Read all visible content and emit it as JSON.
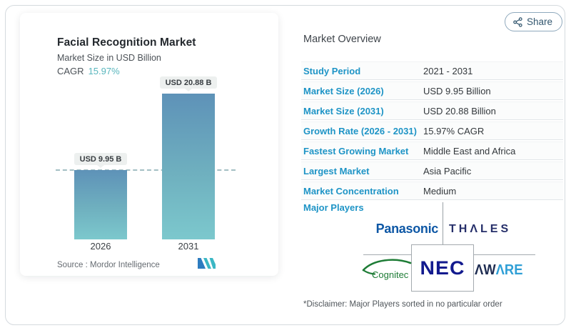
{
  "share": {
    "label": "Share"
  },
  "chart_card": {
    "title": "Facial Recognition Market",
    "subtitle": "Market Size in USD Billion",
    "cagr_label": "CAGR",
    "cagr_value": "15.97%",
    "source_label": "Source :  Mordor Intelligence"
  },
  "chart_data": {
    "type": "bar",
    "categories": [
      "2026",
      "2031"
    ],
    "values": [
      9.95,
      20.88
    ],
    "bar_labels": [
      "USD 9.95 B",
      "USD 20.88 B"
    ],
    "title": "Facial Recognition Market",
    "ylabel": "Market Size in USD Billion",
    "cagr": "15.97%",
    "ylim": [
      0,
      21
    ],
    "reference_line": 9.95,
    "grid": false,
    "bar_gradient_top": "#5e92b8",
    "bar_gradient_bottom": "#7cc8cd"
  },
  "overview": {
    "title": "Market Overview",
    "rows": [
      {
        "label": "Study Period",
        "value": "2021 - 2031"
      },
      {
        "label": "Market Size (2026)",
        "value": "USD 9.95 Billion"
      },
      {
        "label": "Market Size (2031)",
        "value": "USD 20.88 Billion"
      },
      {
        "label": "Growth Rate (2026 - 2031)",
        "value": "15.97% CAGR"
      },
      {
        "label": "Fastest Growing Market",
        "value": "Middle East and Africa"
      },
      {
        "label": "Largest Market",
        "value": "Asia Pacific"
      },
      {
        "label": "Market Concentration",
        "value": "Medium"
      }
    ],
    "major_players_label": "Major Players",
    "players": [
      "Panasonic",
      "THALES",
      "Cognitec",
      "NEC",
      "AWARE"
    ],
    "logos": {
      "panasonic": "Panasonic",
      "thales": "THΛLES",
      "cognitec": "Cognitec",
      "nec": "NEC",
      "aware_dark": "ΛW",
      "aware_light": "ΛRE"
    },
    "disclaimer": "*Disclaimer: Major Players sorted in no particular order"
  },
  "colors": {
    "label_blue": "#1e94c6",
    "accent_teal": "#58b6bd",
    "panasonic_blue": "#0d57a5",
    "thales_navy": "#262f6a",
    "nec_blue": "#121a8e",
    "cognitec_green": "#1e7c36",
    "aware_navy": "#1f2d52",
    "aware_cyan": "#2f9fd6"
  }
}
